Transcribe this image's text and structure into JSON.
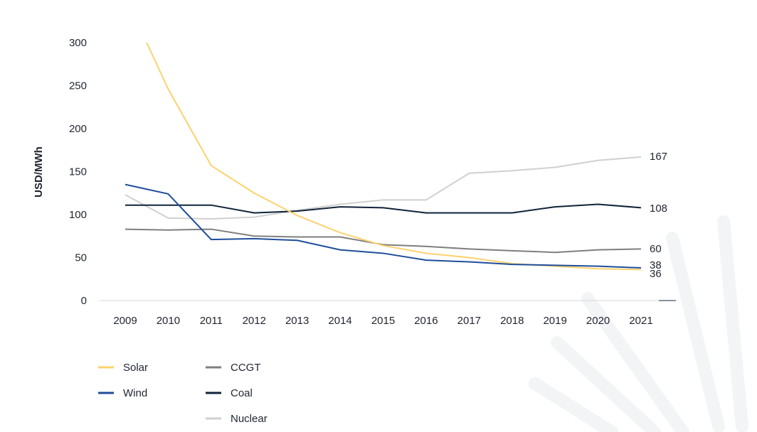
{
  "chart_data": {
    "type": "line",
    "title": "",
    "xlabel": "",
    "ylabel": "USD/MWh",
    "ylim": [
      0,
      300
    ],
    "yticks": [
      0,
      50,
      100,
      150,
      200,
      250,
      300
    ],
    "categories": [
      "2009",
      "2010",
      "2011",
      "2012",
      "2013",
      "2014",
      "2015",
      "2016",
      "2017",
      "2018",
      "2019",
      "2020",
      "2021"
    ],
    "grid": false,
    "legend_placement": "bottom-left",
    "series": [
      {
        "name": "Solar",
        "color": "#fdd26e",
        "values": [
          null,
          246,
          157,
          125,
          99,
          79,
          64,
          55,
          50,
          43,
          40,
          37,
          36
        ],
        "start": {
          "x": 2009.5,
          "y": 300
        },
        "end_label": "36"
      },
      {
        "name": "Wind",
        "color": "#1f4e9c",
        "values": [
          135,
          124,
          71,
          72,
          70,
          59,
          55,
          47,
          45,
          42,
          41,
          40,
          38
        ],
        "end_label": "38"
      },
      {
        "name": "CCGT",
        "color": "#7f7f7f",
        "values": [
          83,
          82,
          83,
          75,
          74,
          74,
          65,
          63,
          60,
          58,
          56,
          59,
          60
        ],
        "end_label": "60"
      },
      {
        "name": "Coal",
        "color": "#0f2339",
        "values": [
          111,
          111,
          111,
          102,
          104,
          109,
          108,
          102,
          102,
          102,
          109,
          112,
          108
        ],
        "end_label": "108"
      },
      {
        "name": "Nuclear",
        "color": "#d0d0d0",
        "values": [
          123,
          96,
          95,
          97,
          105,
          112,
          117,
          117,
          148,
          151,
          155,
          163,
          167
        ],
        "end_label": "167"
      }
    ]
  }
}
